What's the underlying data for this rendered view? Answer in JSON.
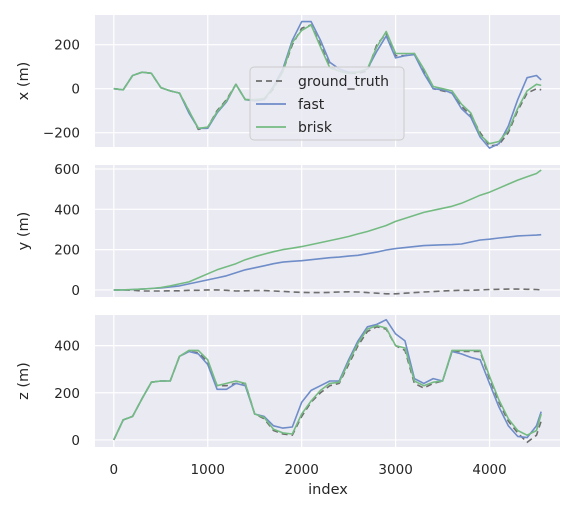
{
  "chart_data": {
    "type": "line",
    "xlabel": "index",
    "x_ticks": [
      0,
      1000,
      2000,
      3000,
      4000
    ],
    "xlim": [
      -200,
      4750
    ],
    "legend": {
      "placement": "upper panel, center-right",
      "entries": [
        "ground_truth",
        "fast",
        "brisk"
      ]
    },
    "grid": true,
    "colors": {
      "ground_truth": "#6e6e6e",
      "fast": "#6f8dc8",
      "brisk": "#74bb82",
      "panel_bg": "#eaeaf2",
      "grid": "#ffffff"
    },
    "x": [
      0,
      100,
      200,
      300,
      400,
      500,
      600,
      700,
      800,
      900,
      1000,
      1100,
      1200,
      1300,
      1400,
      1500,
      1600,
      1700,
      1800,
      1900,
      2000,
      2100,
      2200,
      2300,
      2400,
      2500,
      2600,
      2700,
      2800,
      2900,
      3000,
      3100,
      3200,
      3300,
      3400,
      3500,
      3600,
      3700,
      3800,
      3900,
      4000,
      4100,
      4200,
      4300,
      4400,
      4500,
      4550
    ],
    "panels": [
      {
        "ylabel": "x (m)",
        "ylim": [
          -265,
          335
        ],
        "y_ticks": [
          -200,
          0,
          200
        ],
        "series": [
          {
            "name": "ground_truth",
            "style": "dashed",
            "values": [
              0,
              -5,
              60,
              75,
              70,
              5,
              -10,
              -20,
              -100,
              -185,
              -175,
              -100,
              -50,
              20,
              -50,
              -50,
              -50,
              0,
              80,
              200,
              275,
              290,
              200,
              100,
              80,
              70,
              70,
              80,
              200,
              250,
              150,
              150,
              160,
              80,
              0,
              -10,
              -20,
              -80,
              -120,
              -200,
              -260,
              -255,
              -200,
              -100,
              -20,
              0,
              -5
            ]
          },
          {
            "name": "fast",
            "style": "solid",
            "values": [
              0,
              -5,
              60,
              75,
              70,
              5,
              -10,
              -20,
              -110,
              -180,
              -180,
              -110,
              -60,
              20,
              -50,
              -55,
              -50,
              10,
              90,
              220,
              305,
              305,
              220,
              120,
              90,
              75,
              75,
              90,
              170,
              240,
              140,
              150,
              155,
              70,
              0,
              -5,
              -20,
              -90,
              -130,
              -220,
              -270,
              -250,
              -170,
              -50,
              50,
              60,
              40
            ]
          },
          {
            "name": "brisk",
            "style": "solid",
            "values": [
              0,
              -5,
              60,
              75,
              70,
              5,
              -10,
              -20,
              -100,
              -180,
              -175,
              -105,
              -55,
              20,
              -50,
              -50,
              -45,
              5,
              80,
              210,
              265,
              290,
              190,
              95,
              80,
              70,
              75,
              90,
              190,
              260,
              160,
              160,
              160,
              90,
              10,
              0,
              -10,
              -70,
              -110,
              -210,
              -250,
              -240,
              -190,
              -90,
              -10,
              20,
              15
            ]
          }
        ]
      },
      {
        "ylabel": "y (m)",
        "ylim": [
          -35,
          620
        ],
        "y_ticks": [
          0,
          200,
          400,
          600
        ],
        "series": [
          {
            "name": "ground_truth",
            "style": "dashed",
            "values": [
              0,
              0,
              -2,
              -5,
              -5,
              -5,
              -4,
              -4,
              -2,
              -2,
              0,
              0,
              -2,
              -5,
              -4,
              -3,
              -3,
              -5,
              -7,
              -10,
              -12,
              -13,
              -13,
              -12,
              -10,
              -9,
              -10,
              -13,
              -16,
              -19,
              -19,
              -16,
              -13,
              -10,
              -8,
              -5,
              -3,
              -2,
              -2,
              0,
              2,
              3,
              4,
              4,
              3,
              2,
              0
            ]
          },
          {
            "name": "fast",
            "style": "solid",
            "values": [
              0,
              0,
              2,
              4,
              7,
              10,
              15,
              20,
              30,
              40,
              50,
              60,
              70,
              85,
              100,
              110,
              120,
              130,
              138,
              142,
              145,
              150,
              155,
              160,
              163,
              168,
              172,
              180,
              188,
              198,
              205,
              210,
              215,
              220,
              222,
              224,
              225,
              228,
              238,
              248,
              252,
              258,
              262,
              268,
              270,
              272,
              274
            ]
          },
          {
            "name": "brisk",
            "style": "solid",
            "values": [
              0,
              0,
              2,
              4,
              7,
              12,
              20,
              30,
              40,
              60,
              80,
              100,
              115,
              130,
              150,
              165,
              178,
              190,
              200,
              207,
              215,
              225,
              235,
              245,
              255,
              265,
              278,
              290,
              305,
              320,
              340,
              355,
              370,
              385,
              395,
              405,
              415,
              430,
              450,
              470,
              485,
              505,
              525,
              545,
              562,
              578,
              595
            ]
          }
        ]
      },
      {
        "ylabel": "z (m)",
        "ylim": [
          -30,
          530
        ],
        "y_ticks": [
          0,
          200,
          400
        ],
        "series": [
          {
            "name": "ground_truth",
            "style": "dashed",
            "values": [
              0,
              85,
              100,
              175,
              245,
              250,
              250,
              355,
              375,
              370,
              330,
              230,
              230,
              240,
              240,
              110,
              90,
              40,
              25,
              20,
              100,
              160,
              200,
              230,
              240,
              320,
              400,
              460,
              480,
              470,
              400,
              380,
              240,
              220,
              240,
              250,
              375,
              375,
              375,
              375,
              260,
              160,
              80,
              30,
              -10,
              20,
              80
            ]
          },
          {
            "name": "fast",
            "style": "solid",
            "values": [
              0,
              85,
              100,
              175,
              245,
              250,
              250,
              355,
              375,
              365,
              320,
              215,
              215,
              240,
              230,
              110,
              100,
              60,
              50,
              55,
              160,
              210,
              230,
              250,
              250,
              340,
              420,
              480,
              490,
              510,
              450,
              420,
              260,
              240,
              260,
              250,
              375,
              365,
              350,
              340,
              240,
              140,
              60,
              15,
              10,
              60,
              120
            ]
          },
          {
            "name": "brisk",
            "style": "solid",
            "values": [
              0,
              85,
              100,
              175,
              245,
              250,
              250,
              355,
              380,
              380,
              340,
              230,
              240,
              250,
              240,
              110,
              95,
              45,
              30,
              25,
              110,
              165,
              210,
              240,
              245,
              330,
              410,
              470,
              485,
              475,
              400,
              390,
              250,
              230,
              245,
              250,
              380,
              380,
              380,
              380,
              270,
              170,
              90,
              40,
              20,
              40,
              110
            ]
          }
        ]
      }
    ]
  }
}
